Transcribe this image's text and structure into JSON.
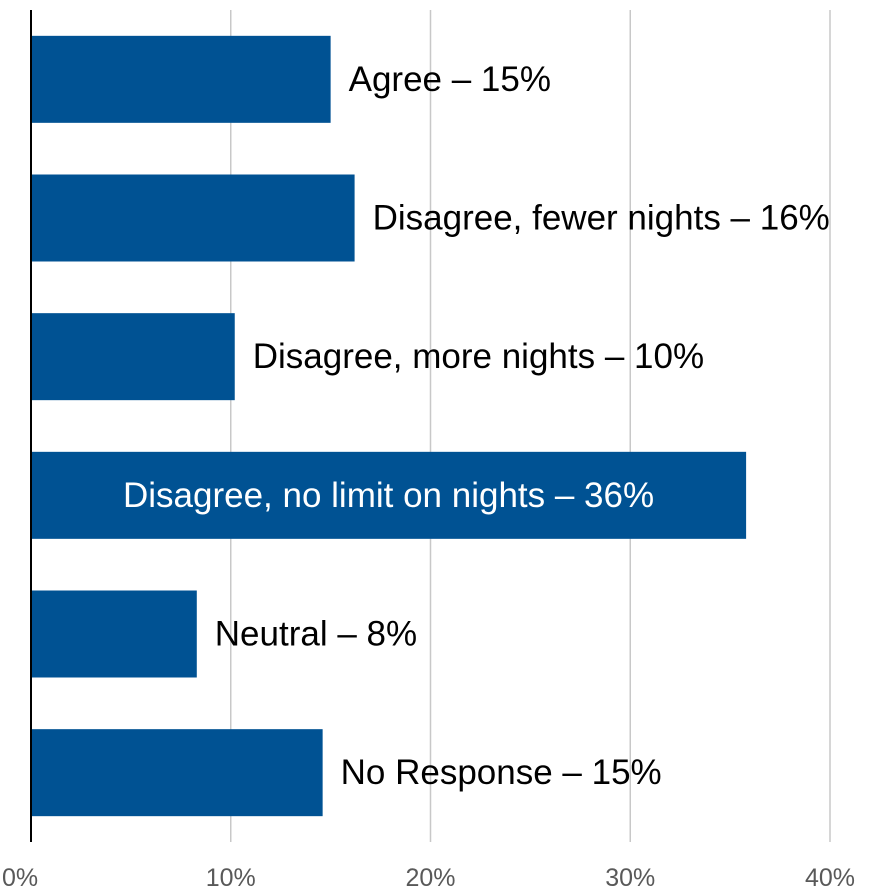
{
  "chart_data": {
    "type": "bar",
    "orientation": "horizontal",
    "title": "",
    "xlabel": "",
    "ylabel": "",
    "categories": [
      "Agree",
      "Disagree, fewer nights",
      "Disagree, more nights",
      "Disagree, no limit on nights",
      "Neutral",
      "No Response"
    ],
    "values": [
      15,
      16.2,
      10.2,
      35.8,
      8.3,
      14.6
    ],
    "labels": [
      "Agree – 15%",
      "Disagree, fewer nights – 16%",
      "Disagree, more nights – 10%",
      "Disagree, no limit on nights – 36%",
      "Neutral – 8%",
      "No Response – 15%"
    ],
    "label_inside": [
      false,
      false,
      false,
      true,
      false,
      false
    ],
    "xlim": [
      0,
      40
    ],
    "xticks": [
      0,
      10,
      20,
      30,
      40
    ],
    "xtick_labels": [
      "0%",
      "10%",
      "20%",
      "30%",
      "40%"
    ],
    "grid": "vertical",
    "legend": "none",
    "colors": {
      "bar": "#005293",
      "grid": "#c8c8c8",
      "axis": "#000000",
      "label_outside": "#000000",
      "label_inside": "#ffffff",
      "tick_label": "#595959"
    }
  }
}
